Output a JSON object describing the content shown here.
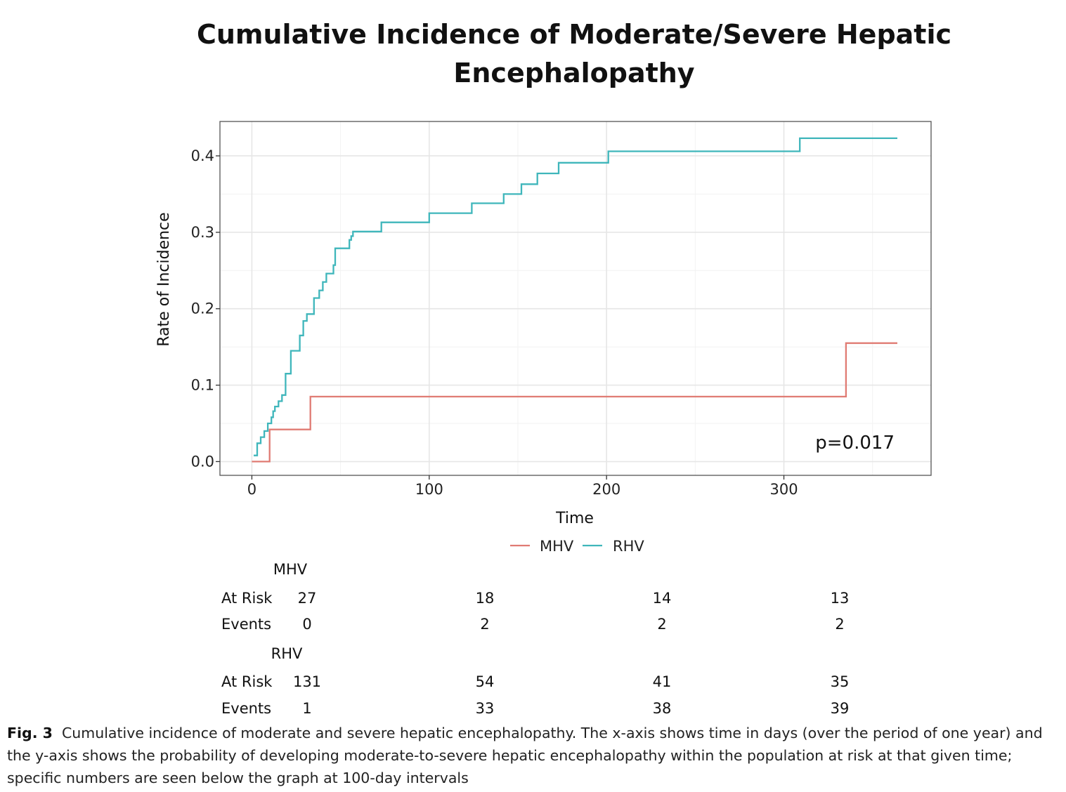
{
  "chart_data": {
    "type": "line",
    "step": true,
    "title_lines": [
      "Cumulative Incidence of Moderate/Severe Hepatic",
      "Encephalopathy"
    ],
    "xlabel": "Time",
    "ylabel": "Rate of Incidence",
    "xlim": [
      -18,
      383
    ],
    "ylim": [
      -0.018,
      0.445
    ],
    "xticks": [
      0,
      100,
      200,
      300
    ],
    "yticks": [
      0.0,
      0.1,
      0.2,
      0.3,
      0.4
    ],
    "ytick_labels": [
      "0.0",
      "0.1",
      "0.2",
      "0.3",
      "0.4"
    ],
    "grid": true,
    "legend_position": "bottom",
    "annotation": "p=0.017",
    "series": [
      {
        "name": "MHV",
        "color": "#e07b73",
        "x": [
          0,
          10,
          10,
          33,
          33,
          335,
          335,
          364
        ],
        "y": [
          0.0,
          0.0,
          0.042,
          0.042,
          0.085,
          0.085,
          0.155,
          0.155
        ]
      },
      {
        "name": "RHV",
        "color": "#3fb6bb",
        "x": [
          1,
          3,
          5,
          7,
          9,
          11,
          12,
          13,
          15,
          17,
          19,
          22,
          27,
          29,
          31,
          35,
          38,
          40,
          42,
          46,
          47,
          55,
          56,
          57,
          73,
          100,
          124,
          142,
          152,
          161,
          173,
          201,
          309,
          364
        ],
        "y": [
          0.008,
          0.024,
          0.032,
          0.04,
          0.05,
          0.058,
          0.066,
          0.072,
          0.079,
          0.087,
          0.115,
          0.145,
          0.165,
          0.184,
          0.193,
          0.214,
          0.224,
          0.235,
          0.246,
          0.257,
          0.279,
          0.29,
          0.295,
          0.301,
          0.313,
          0.325,
          0.338,
          0.35,
          0.363,
          0.377,
          0.391,
          0.406,
          0.423,
          0.423
        ]
      }
    ],
    "risk_table": {
      "time_points": [
        0,
        100,
        200,
        300
      ],
      "groups": [
        {
          "name": "MHV",
          "rows": [
            {
              "label": "At Risk",
              "values": [
                "27",
                "18",
                "14",
                "13"
              ]
            },
            {
              "label": "Events",
              "values": [
                "0",
                "2",
                "2",
                "2"
              ]
            }
          ]
        },
        {
          "name": "RHV",
          "rows": [
            {
              "label": "At Risk",
              "values": [
                "131",
                "54",
                "41",
                "35"
              ]
            },
            {
              "label": "Events",
              "values": [
                "1",
                "33",
                "38",
                "39"
              ]
            }
          ]
        }
      ]
    }
  },
  "caption": {
    "label": "Fig. 3",
    "text": "Cumulative incidence of moderate and severe hepatic encephalopathy. The x-axis shows time in days (over the period of one year) and the y-axis shows the probability of developing moderate-to-severe hepatic encephalopathy within the population at risk at that given time; specific numbers are seen below the graph at 100-day intervals"
  }
}
